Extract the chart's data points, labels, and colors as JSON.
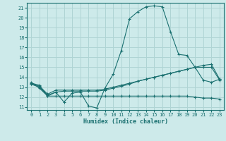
{
  "xlabel": "Humidex (Indice chaleur)",
  "bg_color": "#cdeaea",
  "grid_color": "#afd4d4",
  "line_color": "#1a7070",
  "xlim": [
    -0.5,
    23.5
  ],
  "ylim": [
    10.7,
    21.5
  ],
  "yticks": [
    11,
    12,
    13,
    14,
    15,
    16,
    17,
    18,
    19,
    20,
    21
  ],
  "xticks": [
    0,
    1,
    2,
    3,
    4,
    5,
    6,
    7,
    8,
    9,
    10,
    11,
    12,
    13,
    14,
    15,
    16,
    17,
    18,
    19,
    20,
    21,
    22,
    23
  ],
  "line1_x": [
    0,
    1,
    2,
    3,
    4,
    5,
    6,
    7,
    8,
    9,
    10,
    11,
    12,
    13,
    14,
    15,
    16,
    17,
    18,
    19,
    20,
    21,
    22,
    23
  ],
  "line1_y": [
    13.5,
    12.9,
    12.1,
    12.5,
    11.5,
    12.4,
    12.5,
    11.1,
    10.9,
    12.9,
    14.3,
    16.7,
    19.9,
    20.6,
    21.1,
    21.2,
    21.1,
    18.6,
    16.3,
    16.2,
    15.0,
    13.7,
    13.5,
    13.8
  ],
  "line2_x": [
    0,
    1,
    2,
    3,
    4,
    5,
    6,
    7,
    8,
    9,
    10,
    11,
    12,
    13,
    14,
    15,
    16,
    17,
    18,
    19,
    20,
    21,
    22,
    23
  ],
  "line2_y": [
    13.3,
    13.0,
    12.2,
    12.5,
    12.6,
    12.6,
    12.6,
    12.6,
    12.6,
    12.7,
    12.9,
    13.1,
    13.3,
    13.6,
    13.8,
    14.0,
    14.2,
    14.4,
    14.6,
    14.8,
    15.0,
    15.2,
    15.3,
    13.8
  ],
  "line3_x": [
    0,
    1,
    2,
    3,
    4,
    5,
    6,
    7,
    8,
    9,
    10,
    11,
    12,
    13,
    14,
    15,
    16,
    17,
    18,
    19,
    20,
    21,
    22,
    23
  ],
  "line3_y": [
    13.3,
    13.1,
    12.3,
    12.7,
    12.7,
    12.7,
    12.7,
    12.7,
    12.7,
    12.8,
    13.0,
    13.2,
    13.4,
    13.6,
    13.8,
    14.0,
    14.2,
    14.4,
    14.6,
    14.8,
    15.0,
    15.0,
    15.0,
    13.7
  ],
  "line4_x": [
    0,
    1,
    2,
    3,
    4,
    5,
    6,
    7,
    8,
    9,
    10,
    11,
    12,
    13,
    14,
    15,
    16,
    17,
    18,
    19,
    20,
    21,
    22,
    23
  ],
  "line4_y": [
    13.4,
    13.2,
    12.1,
    12.1,
    12.1,
    12.1,
    12.1,
    12.1,
    12.1,
    12.1,
    12.1,
    12.1,
    12.1,
    12.1,
    12.1,
    12.1,
    12.1,
    12.1,
    12.1,
    12.1,
    12.0,
    11.9,
    11.9,
    11.8
  ]
}
